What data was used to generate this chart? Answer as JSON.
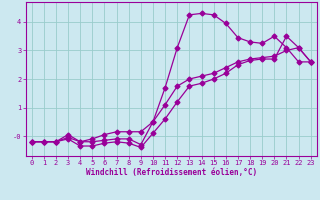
{
  "xlabel": "Windchill (Refroidissement éolien,°C)",
  "background_color": "#cce8f0",
  "grid_color": "#99cccc",
  "line_color": "#990099",
  "xlim": [
    -0.5,
    23.5
  ],
  "ylim": [
    -0.7,
    4.7
  ],
  "xticks": [
    0,
    1,
    2,
    3,
    4,
    5,
    6,
    7,
    8,
    9,
    10,
    11,
    12,
    13,
    14,
    15,
    16,
    17,
    18,
    19,
    20,
    21,
    22,
    23
  ],
  "yticks": [
    0,
    1,
    2,
    3,
    4
  ],
  "ytick_labels": [
    "-0",
    "1",
    "2",
    "3",
    "4"
  ],
  "line1_x": [
    0,
    1,
    2,
    3,
    4,
    5,
    6,
    7,
    8,
    9,
    10,
    11,
    12,
    13,
    14,
    15,
    16,
    17,
    18,
    19,
    20,
    21,
    22,
    23
  ],
  "line1_y": [
    -0.2,
    -0.2,
    -0.2,
    -0.05,
    -0.2,
    -0.2,
    -0.15,
    -0.1,
    -0.1,
    -0.3,
    0.5,
    1.7,
    3.1,
    4.25,
    4.3,
    4.25,
    3.95,
    3.45,
    3.3,
    3.25,
    3.5,
    3.1,
    2.6,
    2.6
  ],
  "line2_x": [
    0,
    1,
    2,
    3,
    4,
    5,
    6,
    7,
    8,
    9,
    10,
    11,
    12,
    13,
    14,
    15,
    16,
    17,
    18,
    19,
    20,
    21,
    22,
    23
  ],
  "line2_y": [
    -0.2,
    -0.2,
    -0.2,
    0.05,
    -0.2,
    -0.1,
    0.05,
    0.15,
    0.15,
    0.15,
    0.5,
    1.1,
    1.75,
    2.0,
    2.1,
    2.2,
    2.4,
    2.6,
    2.7,
    2.75,
    2.8,
    3.0,
    3.1,
    2.6
  ],
  "line3_x": [
    0,
    1,
    2,
    3,
    4,
    5,
    6,
    7,
    8,
    9,
    10,
    11,
    12,
    13,
    14,
    15,
    16,
    17,
    18,
    19,
    20,
    21,
    22,
    23
  ],
  "line3_y": [
    -0.2,
    -0.2,
    -0.2,
    -0.1,
    -0.35,
    -0.35,
    -0.25,
    -0.2,
    -0.25,
    -0.4,
    0.1,
    0.6,
    1.2,
    1.75,
    1.85,
    2.0,
    2.2,
    2.5,
    2.65,
    2.7,
    2.7,
    3.5,
    3.1,
    2.6
  ]
}
